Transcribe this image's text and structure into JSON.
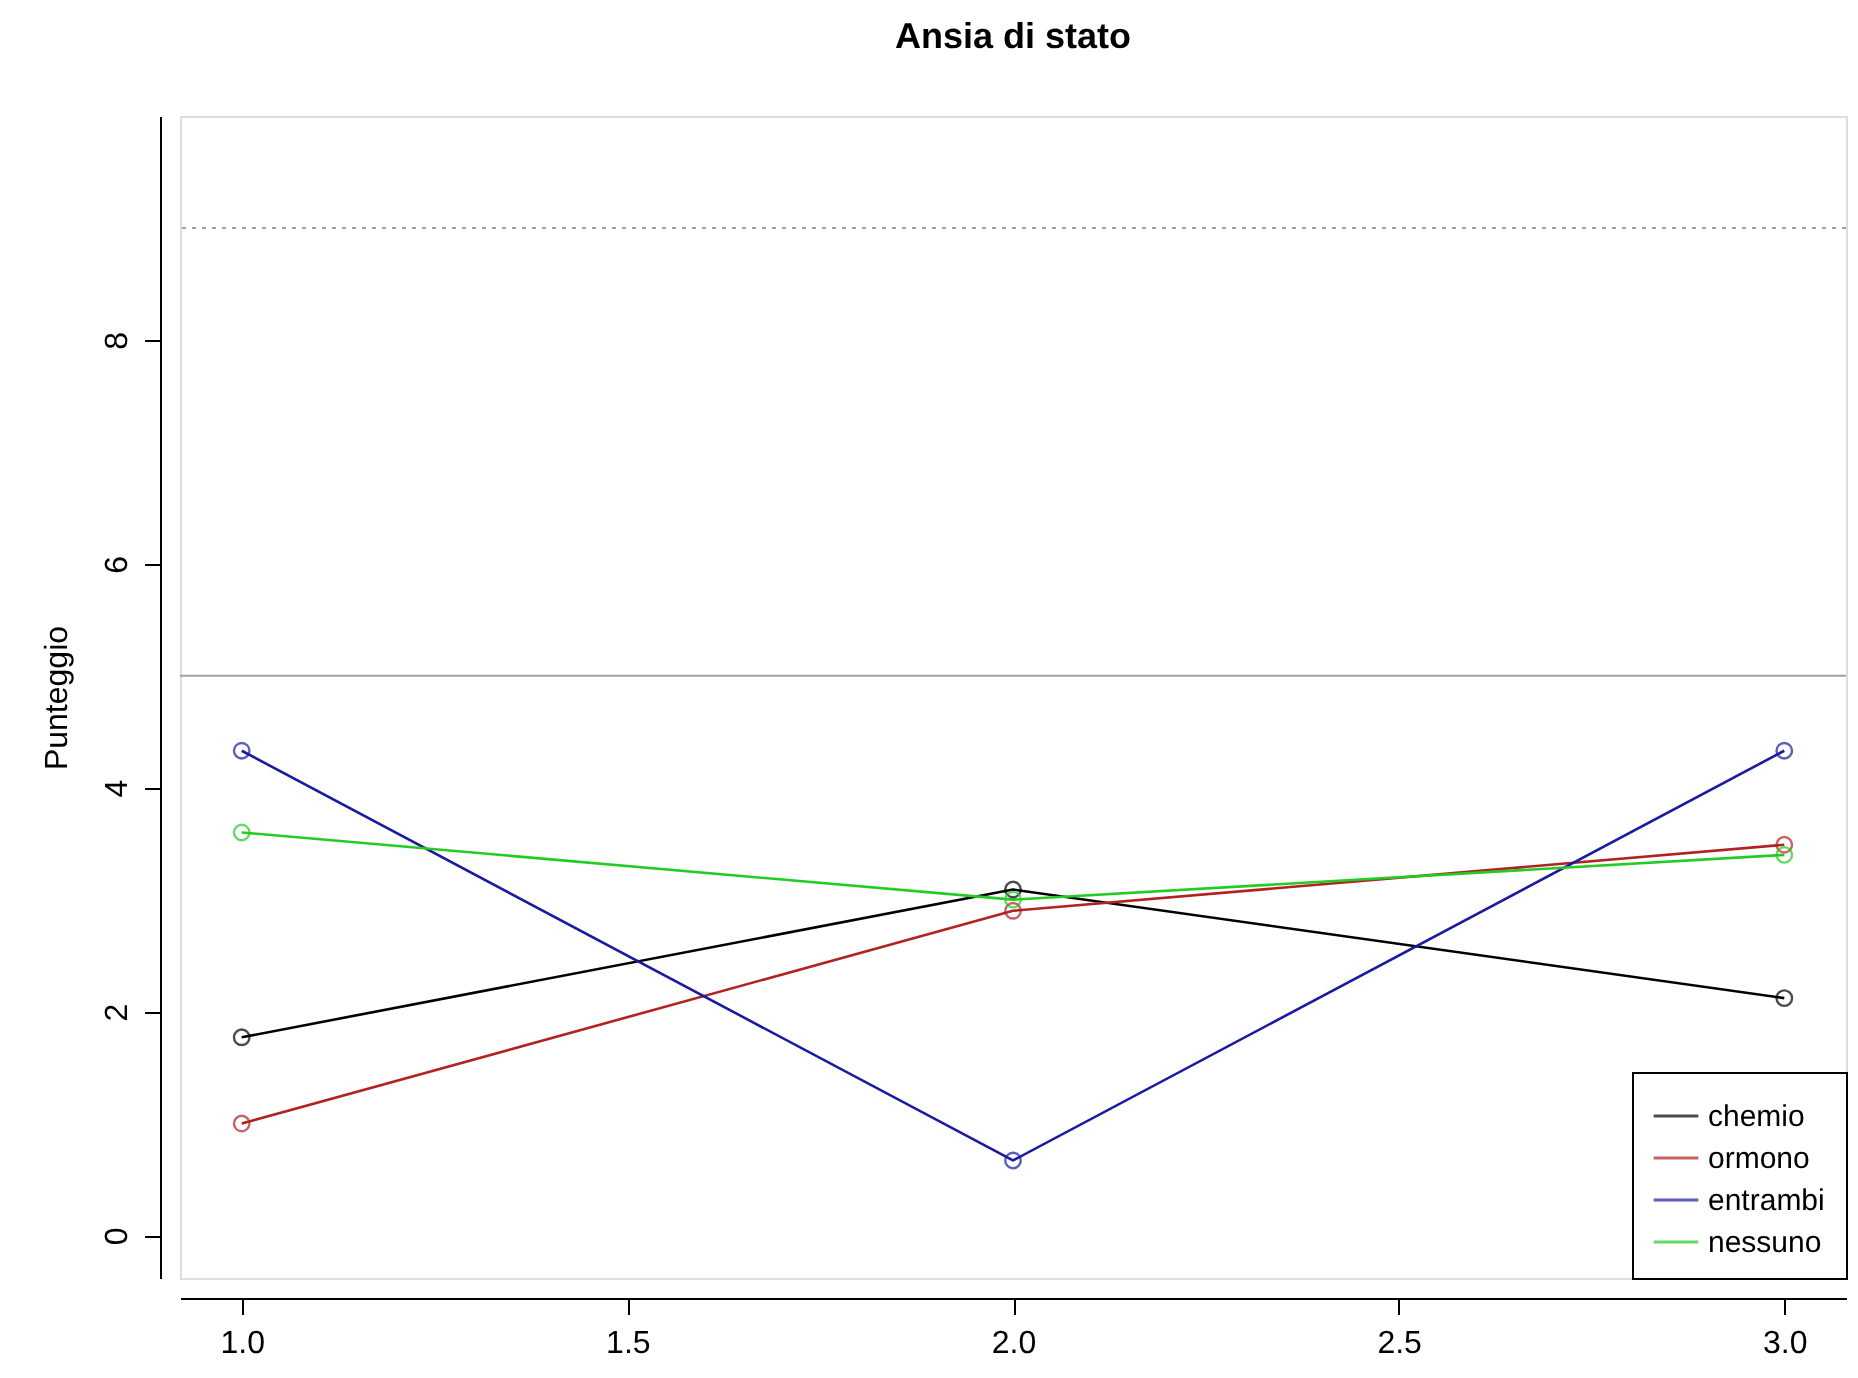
{
  "chart_data": {
    "type": "line",
    "title": "Ansia di stato",
    "ylabel": "Punteggio",
    "x": [
      1,
      2,
      3
    ],
    "series": [
      {
        "name": "chemio",
        "color": "#000000",
        "values": [
          1.77,
          3.09,
          2.12
        ]
      },
      {
        "name": "ormono",
        "color": "#b22222",
        "values": [
          1.0,
          2.9,
          3.49
        ]
      },
      {
        "name": "entrambi",
        "color": "#1a1aa0",
        "values": [
          4.33,
          0.67,
          4.33
        ]
      },
      {
        "name": "nessuno",
        "color": "#22cc22",
        "values": [
          3.6,
          3.0,
          3.4
        ]
      }
    ],
    "xlim": [
      0.92,
      3.08
    ],
    "xticks": [
      {
        "value": 1,
        "label": "1.0"
      },
      {
        "value": 1.5,
        "label": "1.5"
      },
      {
        "value": 2,
        "label": "2.0"
      },
      {
        "value": 2.5,
        "label": "2.5"
      },
      {
        "value": 3,
        "label": "3.0"
      }
    ],
    "ylim": [
      -0.38,
      10.0
    ],
    "yticks": [
      0,
      2,
      4,
      6,
      8
    ],
    "ref_lines": [
      {
        "axis": "y",
        "value": 5,
        "color": "#a0a0a0",
        "line_style": "solid"
      },
      {
        "axis": "y",
        "value": 9,
        "color": "#a0a0a0",
        "line_style": "dotted"
      }
    ],
    "marker": "circle",
    "line_style": "solid",
    "grid": false,
    "legend": "bottom right"
  }
}
